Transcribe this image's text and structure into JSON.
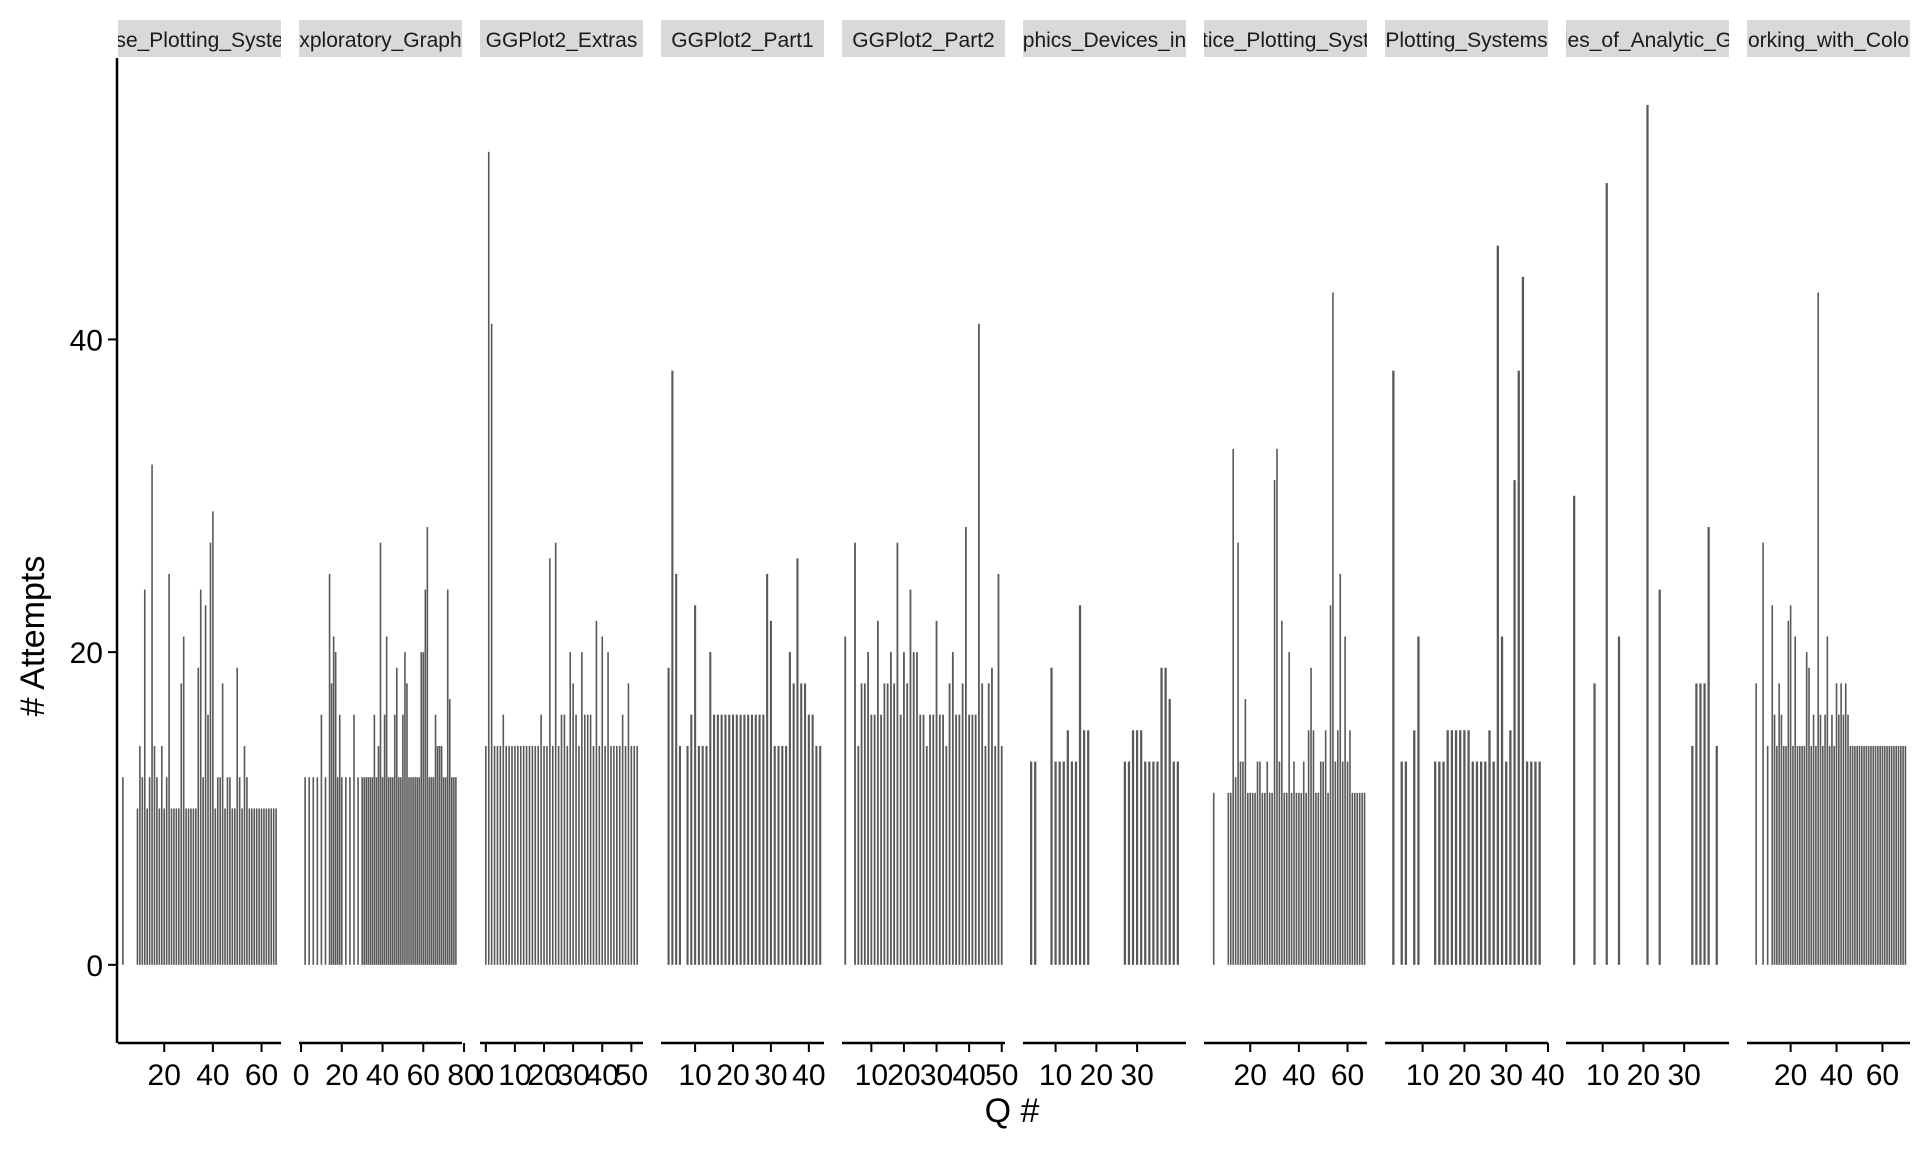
{
  "chart_data": {
    "type": "bar",
    "title": "",
    "xlabel": "Q #",
    "ylabel": "# Attempts",
    "ylim": [
      -5,
      58
    ],
    "yticks": [
      0,
      20,
      40
    ],
    "bar_color": "#595959",
    "strip_color": "#d9d9d9",
    "panels": [
      {
        "label": "se_Plotting_Syste",
        "xlim": [
          1,
          68
        ],
        "xticks": [
          20,
          40,
          60
        ],
        "x": [
          3,
          9,
          10,
          11,
          12,
          13,
          14,
          15,
          16,
          17,
          18,
          19,
          20,
          21,
          22,
          23,
          24,
          25,
          26,
          27,
          28,
          29,
          30,
          31,
          32,
          33,
          34,
          35,
          36,
          37,
          38,
          39,
          40,
          41,
          42,
          43,
          44,
          45,
          46,
          47,
          48,
          49,
          50,
          51,
          52,
          53,
          54,
          55,
          56,
          57,
          58,
          59,
          60,
          61,
          62,
          63,
          64,
          65,
          66
        ],
        "values": [
          12,
          10,
          14,
          12,
          24,
          10,
          12,
          32,
          14,
          12,
          10,
          14,
          10,
          12,
          25,
          10,
          10,
          10,
          10,
          18,
          21,
          10,
          10,
          10,
          10,
          10,
          19,
          24,
          12,
          23,
          16,
          27,
          29,
          10,
          12,
          12,
          18,
          10,
          12,
          12,
          10,
          10,
          19,
          12,
          10,
          14,
          12,
          10,
          10,
          10,
          10,
          10,
          10,
          10,
          10,
          10,
          10,
          10,
          10
        ]
      },
      {
        "label": "xploratory_Graph",
        "xlim": [
          -1,
          79
        ],
        "xticks": [
          0,
          20,
          40,
          60,
          80
        ],
        "x": [
          2,
          4,
          6,
          8,
          10,
          12,
          14,
          15,
          16,
          17,
          18,
          19,
          20,
          22,
          24,
          26,
          28,
          30,
          31,
          32,
          33,
          34,
          35,
          36,
          37,
          38,
          39,
          40,
          41,
          42,
          43,
          44,
          45,
          46,
          47,
          48,
          49,
          50,
          51,
          52,
          53,
          54,
          55,
          56,
          57,
          58,
          59,
          60,
          61,
          62,
          63,
          64,
          65,
          66,
          67,
          68,
          69,
          70,
          71,
          72,
          73,
          74,
          75,
          76
        ],
        "values": [
          12,
          12,
          12,
          12,
          16,
          12,
          25,
          18,
          21,
          20,
          12,
          16,
          12,
          12,
          12,
          16,
          12,
          12,
          12,
          12,
          12,
          12,
          12,
          16,
          12,
          14,
          27,
          12,
          16,
          21,
          12,
          12,
          12,
          16,
          19,
          12,
          12,
          16,
          20,
          18,
          12,
          12,
          12,
          12,
          12,
          12,
          20,
          20,
          24,
          28,
          12,
          12,
          12,
          16,
          14,
          14,
          14,
          12,
          12,
          24,
          17,
          12,
          12,
          12
        ]
      },
      {
        "label": "GGPlot2_Extras",
        "xlim": [
          -2,
          54
        ],
        "xticks": [
          0,
          10,
          20,
          30,
          40,
          50
        ],
        "x": [
          0,
          1,
          2,
          3,
          4,
          5,
          6,
          7,
          8,
          9,
          10,
          11,
          12,
          13,
          14,
          15,
          16,
          17,
          18,
          19,
          20,
          21,
          22,
          23,
          24,
          25,
          26,
          27,
          28,
          29,
          30,
          31,
          32,
          33,
          34,
          35,
          36,
          37,
          38,
          39,
          40,
          41,
          42,
          43,
          44,
          45,
          46,
          47,
          48,
          49,
          50,
          51,
          52
        ],
        "values": [
          14,
          52,
          41,
          14,
          14,
          14,
          16,
          14,
          14,
          14,
          14,
          14,
          14,
          14,
          14,
          14,
          14,
          14,
          14,
          16,
          14,
          14,
          26,
          14,
          27,
          14,
          16,
          16,
          14,
          20,
          18,
          16,
          14,
          20,
          16,
          16,
          16,
          14,
          22,
          14,
          21,
          14,
          20,
          14,
          14,
          14,
          14,
          16,
          14,
          18,
          14,
          14,
          14
        ]
      },
      {
        "label": "GGPlot2_Part1",
        "xlim": [
          1,
          44
        ],
        "xticks": [
          10,
          20,
          30,
          40
        ],
        "x": [
          3,
          4,
          5,
          6,
          8,
          9,
          10,
          11,
          12,
          13,
          14,
          15,
          16,
          17,
          18,
          19,
          20,
          21,
          22,
          23,
          24,
          25,
          26,
          27,
          28,
          29,
          30,
          31,
          32,
          33,
          34,
          35,
          36,
          37,
          38,
          39,
          40,
          41,
          42,
          43
        ],
        "values": [
          19,
          38,
          25,
          14,
          14,
          16,
          23,
          14,
          14,
          14,
          20,
          16,
          16,
          16,
          16,
          16,
          16,
          16,
          16,
          16,
          16,
          16,
          16,
          16,
          16,
          25,
          22,
          14,
          14,
          14,
          14,
          20,
          18,
          26,
          18,
          18,
          16,
          16,
          14,
          14
        ]
      },
      {
        "label": "GGPlot2_Part2",
        "xlim": [
          1,
          51
        ],
        "xticks": [
          10,
          20,
          30,
          40,
          50
        ],
        "x": [
          2,
          5,
          6,
          7,
          8,
          9,
          10,
          11,
          12,
          13,
          14,
          15,
          16,
          17,
          18,
          19,
          20,
          21,
          22,
          23,
          24,
          25,
          26,
          27,
          28,
          29,
          30,
          31,
          32,
          33,
          34,
          35,
          36,
          37,
          38,
          39,
          40,
          41,
          42,
          43,
          44,
          45,
          46,
          47,
          48,
          49,
          50
        ],
        "values": [
          21,
          27,
          14,
          18,
          18,
          20,
          16,
          16,
          22,
          16,
          18,
          18,
          20,
          18,
          27,
          16,
          20,
          18,
          24,
          20,
          20,
          16,
          16,
          14,
          16,
          16,
          22,
          16,
          16,
          14,
          18,
          20,
          16,
          16,
          18,
          28,
          16,
          16,
          16,
          41,
          18,
          14,
          18,
          19,
          14,
          25,
          14
        ]
      },
      {
        "label": "phics_Devices_in",
        "xlim": [
          2,
          42
        ],
        "xticks": [
          10,
          20,
          30
        ],
        "x": [
          4,
          5,
          9,
          10,
          11,
          12,
          13,
          14,
          15,
          16,
          17,
          18,
          27,
          28,
          29,
          30,
          31,
          32,
          33,
          34,
          35,
          36,
          37,
          38,
          39,
          40
        ],
        "values": [
          13,
          13,
          19,
          13,
          13,
          13,
          15,
          13,
          13,
          23,
          15,
          15,
          13,
          13,
          15,
          15,
          15,
          13,
          13,
          13,
          13,
          19,
          19,
          17,
          13,
          13
        ]
      },
      {
        "label": "tice_Plotting_Syst",
        "xlim": [
          1,
          68
        ],
        "xticks": [
          20,
          40,
          60
        ],
        "x": [
          5,
          11,
          12,
          13,
          14,
          15,
          16,
          17,
          18,
          19,
          20,
          21,
          22,
          23,
          24,
          25,
          26,
          27,
          28,
          29,
          30,
          31,
          32,
          33,
          34,
          35,
          36,
          37,
          38,
          39,
          40,
          41,
          42,
          43,
          44,
          45,
          46,
          47,
          48,
          49,
          50,
          51,
          52,
          53,
          54,
          55,
          56,
          57,
          58,
          59,
          60,
          61,
          62,
          63,
          64,
          65,
          66,
          67
        ],
        "values": [
          11,
          11,
          11,
          33,
          12,
          27,
          13,
          13,
          17,
          11,
          11,
          11,
          11,
          13,
          13,
          11,
          11,
          13,
          11,
          11,
          31,
          33,
          13,
          22,
          11,
          11,
          20,
          11,
          13,
          11,
          11,
          11,
          13,
          11,
          15,
          19,
          15,
          11,
          11,
          13,
          13,
          15,
          11,
          23,
          43,
          13,
          15,
          25,
          13,
          21,
          13,
          15,
          11,
          11,
          11,
          11,
          11,
          11
        ]
      },
      {
        "label": "Plotting_Systems",
        "xlim": [
          1,
          40
        ],
        "xticks": [
          10,
          20,
          30,
          40
        ],
        "x": [
          3,
          5,
          6,
          8,
          9,
          13,
          14,
          15,
          16,
          17,
          18,
          19,
          20,
          21,
          22,
          23,
          24,
          25,
          26,
          27,
          28,
          29,
          30,
          31,
          32,
          33,
          34,
          35,
          36,
          37,
          38
        ],
        "values": [
          38,
          13,
          13,
          15,
          21,
          13,
          13,
          13,
          15,
          15,
          15,
          15,
          15,
          15,
          13,
          13,
          13,
          13,
          15,
          13,
          46,
          21,
          13,
          15,
          31,
          38,
          44,
          13,
          13,
          13,
          13
        ]
      },
      {
        "label": "les_of_Analytic_G",
        "xlim": [
          1,
          41
        ],
        "xticks": [
          10,
          20,
          30
        ],
        "x": [
          3,
          8,
          11,
          14,
          21,
          24,
          32,
          33,
          34,
          35,
          36,
          38
        ],
        "values": [
          30,
          18,
          50,
          21,
          55,
          24,
          14,
          18,
          18,
          18,
          28,
          14
        ]
      },
      {
        "label": "orking_with_Colo",
        "xlim": [
          1,
          72
        ],
        "xticks": [
          20,
          40,
          60
        ],
        "x": [
          5,
          8,
          10,
          12,
          13,
          14,
          15,
          16,
          17,
          18,
          19,
          20,
          21,
          22,
          23,
          24,
          25,
          26,
          27,
          28,
          29,
          30,
          31,
          32,
          33,
          34,
          35,
          36,
          37,
          38,
          39,
          40,
          41,
          42,
          43,
          44,
          45,
          46,
          47,
          48,
          49,
          50,
          51,
          52,
          53,
          54,
          55,
          56,
          57,
          58,
          59,
          60,
          61,
          62,
          63,
          64,
          65,
          66,
          67,
          68,
          69,
          70
        ],
        "values": [
          18,
          27,
          14,
          23,
          16,
          14,
          18,
          16,
          14,
          14,
          22,
          23,
          14,
          21,
          14,
          14,
          14,
          14,
          20,
          19,
          14,
          16,
          14,
          43,
          16,
          14,
          16,
          21,
          14,
          16,
          14,
          18,
          16,
          18,
          16,
          18,
          16,
          14,
          14,
          14,
          14,
          14,
          14,
          14,
          14,
          14,
          14,
          14,
          14,
          14,
          14,
          14,
          14,
          14,
          14,
          14,
          14,
          14,
          14,
          14,
          14,
          14
        ]
      }
    ]
  }
}
